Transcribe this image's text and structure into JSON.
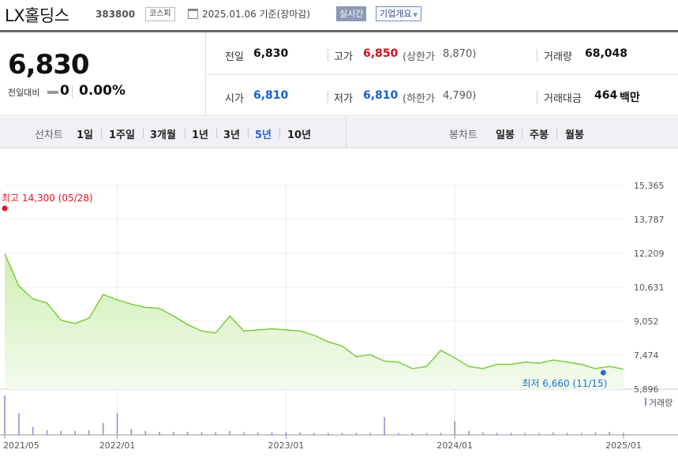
{
  "header": {
    "stock_name": "LX홀딩스",
    "stock_code": "383800",
    "market": "코스피",
    "base_date": "2025.01.06 기준(장마감)",
    "realtime_label": "실시간",
    "info_label": "기업개요"
  },
  "price": {
    "current": "6,830",
    "change_label": "전일대비",
    "change_value": "0",
    "change_pct": "0.00%",
    "prev_close_label": "전일",
    "prev_close": "6,830",
    "high_label": "고가",
    "high": "6,850",
    "upper_limit_label": "(상한가",
    "upper_limit": "8,870)",
    "volume_label": "거래량",
    "volume": "68,048",
    "open_label": "시가",
    "open": "6,810",
    "low_label": "저가",
    "low": "6,810",
    "lower_limit_label": "(하한가",
    "lower_limit": "4,790)",
    "amount_label": "거래대금",
    "amount": "464",
    "amount_unit": "백만"
  },
  "periods": {
    "line_label": "선차트",
    "line_items": [
      "1일",
      "1주일",
      "3개월",
      "1년",
      "3년",
      "5년",
      "10년"
    ],
    "active": "5년",
    "candle_label": "봉차트",
    "candle_items": [
      "일봉",
      "주봉",
      "월봉"
    ]
  },
  "colors": {
    "line": "#7ccd3c",
    "area_top": "#cdeeb2",
    "area_bottom": "#f4fbee",
    "volume": "#8a8ad0",
    "high_marker": "#e8131d",
    "low_marker": "#1a6fd8"
  },
  "chart_data": {
    "type": "area",
    "x": [
      "2021/05",
      "2021/06",
      "2021/07",
      "2021/08",
      "2021/09",
      "2021/10",
      "2021/11",
      "2021/12",
      "2022/01",
      "2022/02",
      "2022/03",
      "2022/04",
      "2022/05",
      "2022/06",
      "2022/07",
      "2022/08",
      "2022/09",
      "2022/10",
      "2022/11",
      "2022/12",
      "2023/01",
      "2023/02",
      "2023/03",
      "2023/04",
      "2023/05",
      "2023/06",
      "2023/07",
      "2023/08",
      "2023/09",
      "2023/10",
      "2023/11",
      "2023/12",
      "2024/01",
      "2024/02",
      "2024/03",
      "2024/04",
      "2024/05",
      "2024/06",
      "2024/07",
      "2024/08",
      "2024/09",
      "2024/10",
      "2024/11",
      "2024/12",
      "2025/01"
    ],
    "y": [
      12200,
      10700,
      10100,
      9900,
      9100,
      8950,
      9200,
      10300,
      10050,
      9850,
      9700,
      9650,
      9300,
      8900,
      8600,
      8500,
      9300,
      8600,
      8650,
      8700,
      8650,
      8600,
      8400,
      8100,
      7900,
      7400,
      7500,
      7200,
      7150,
      6850,
      6950,
      7700,
      7350,
      6950,
      6850,
      7050,
      7050,
      7150,
      7100,
      7250,
      7150,
      7050,
      6850,
      6950,
      6830
    ],
    "volume_relative": [
      1.0,
      0.55,
      0.2,
      0.12,
      0.1,
      0.1,
      0.12,
      0.3,
      0.55,
      0.15,
      0.1,
      0.08,
      0.08,
      0.08,
      0.07,
      0.07,
      0.1,
      0.07,
      0.06,
      0.06,
      0.06,
      0.06,
      0.05,
      0.05,
      0.05,
      0.05,
      0.05,
      0.45,
      0.05,
      0.05,
      0.05,
      0.05,
      0.35,
      0.1,
      0.06,
      0.05,
      0.05,
      0.05,
      0.05,
      0.06,
      0.05,
      0.05,
      0.06,
      0.08,
      0.05
    ],
    "y_ticks": [
      "15,365",
      "13,787",
      "12,209",
      "10,631",
      "9,052",
      "7,474",
      "5,896"
    ],
    "y_tick_values": [
      15365,
      13787,
      12209,
      10631,
      9052,
      7474,
      5896
    ],
    "ylim": [
      5896,
      15365
    ],
    "x_ticks": [
      "2021/05",
      "2022/01",
      "2023/01",
      "2024/01",
      "2025/01"
    ],
    "high": {
      "label": "최고 14,300 (05/28)",
      "value": 14300,
      "date": "2021/05"
    },
    "low": {
      "label": "최저 6,660 (11/15)",
      "value": 6660,
      "date": "2024/11"
    },
    "volume_legend": "거래량",
    "grid": true
  }
}
